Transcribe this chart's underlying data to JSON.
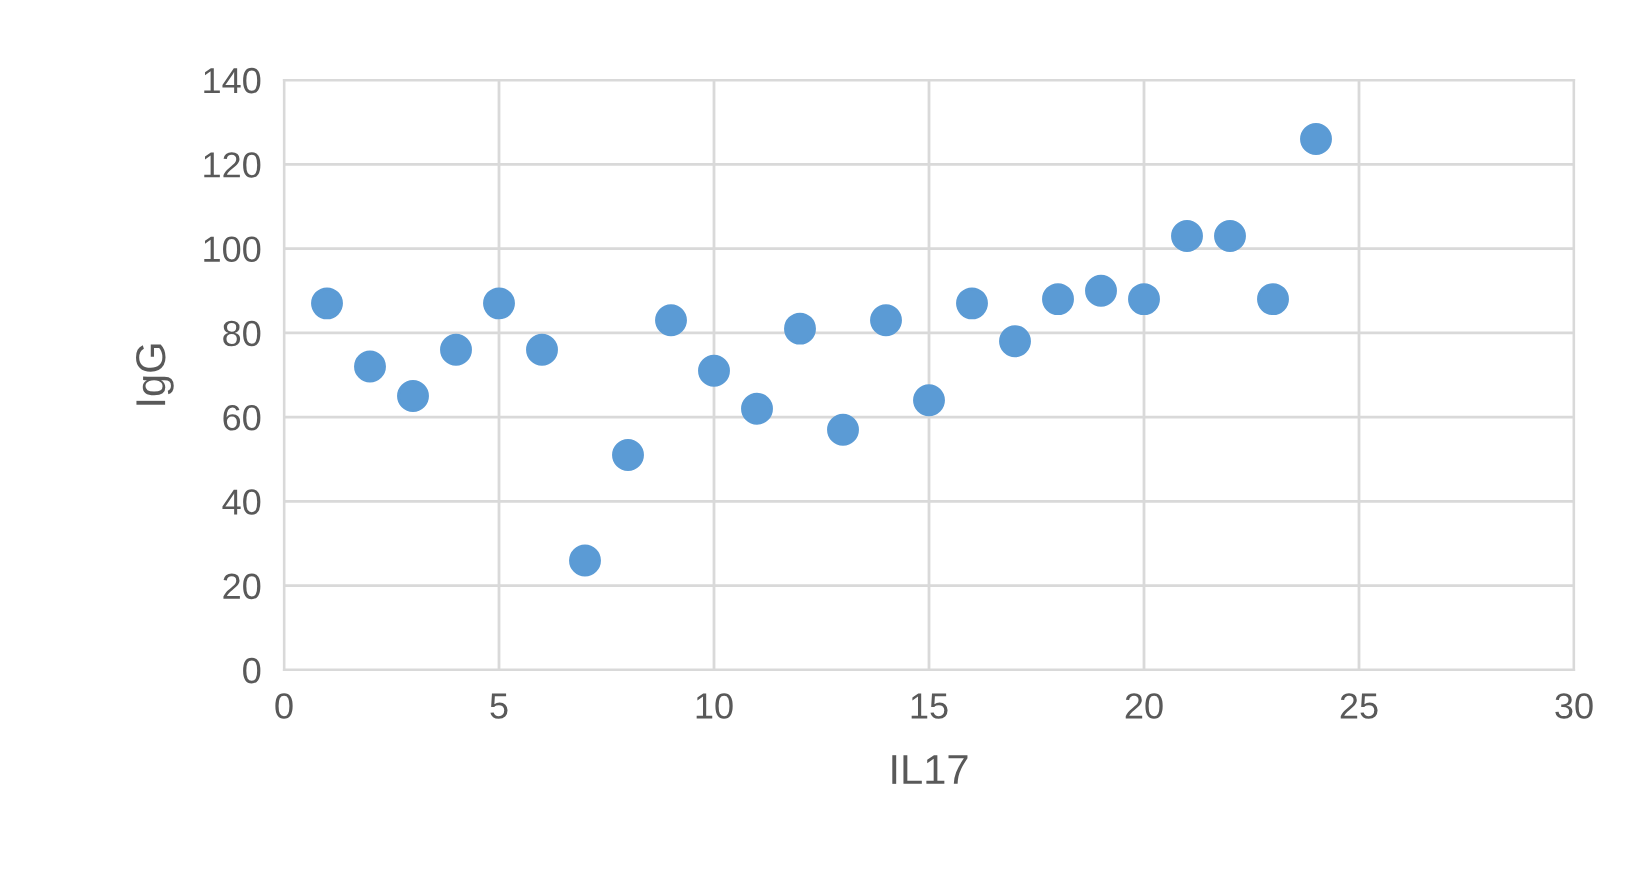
{
  "chart_data": {
    "type": "scatter",
    "xlabel": "IL17",
    "ylabel": "IgG",
    "x": [
      1,
      2,
      3,
      4,
      5,
      6,
      7,
      8,
      9,
      10,
      11,
      12,
      13,
      14,
      15,
      16,
      17,
      18,
      19,
      20,
      21,
      22,
      23,
      24
    ],
    "series": [
      {
        "color": "#5b9bd5",
        "values": [
          87,
          72,
          65,
          76,
          87,
          76,
          26,
          51,
          83,
          71,
          62,
          81,
          57,
          83,
          64,
          87,
          78,
          88,
          90,
          88,
          103,
          103,
          88,
          126
        ]
      }
    ],
    "xlim": [
      0,
      30
    ],
    "xticks": [
      0,
      5,
      10,
      15,
      20,
      25,
      30
    ],
    "ylim": [
      0,
      140
    ],
    "yticks": [
      0,
      20,
      40,
      60,
      80,
      100,
      120,
      140
    ],
    "grid": true,
    "marker": "circle"
  }
}
